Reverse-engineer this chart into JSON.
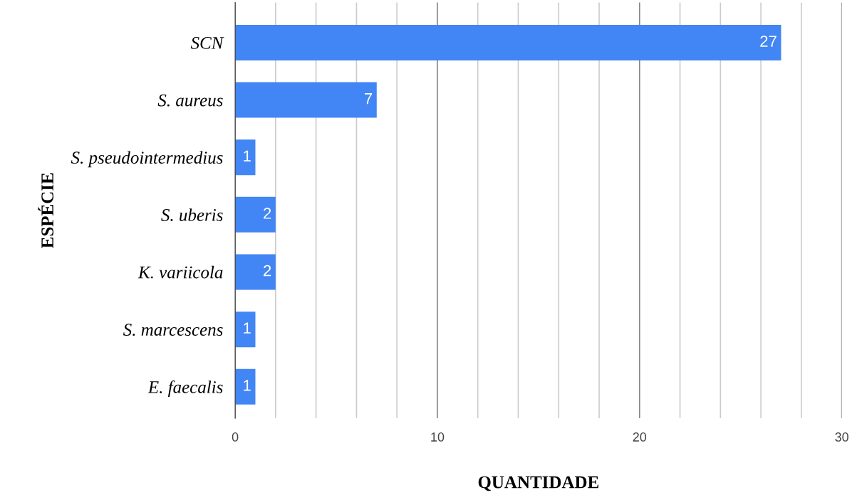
{
  "chart_data": {
    "type": "bar",
    "orientation": "horizontal",
    "categories": [
      "SCN",
      "S. aureus",
      "S. pseudointermedius",
      "S. uberis",
      "K. variicola",
      "S. marcescens",
      "E. faecalis"
    ],
    "values": [
      27,
      7,
      1,
      2,
      2,
      1,
      1
    ],
    "color": "#4285f4",
    "xlabel": "QUANTIDADE",
    "ylabel": "ESPÉCIE",
    "xlim": [
      0,
      30
    ],
    "xticks": [
      0,
      {
        "value": 2,
        "label": null
      },
      {
        "value": 4,
        "label": null
      },
      {
        "value": 6,
        "label": null
      },
      {
        "value": 8,
        "label": null
      },
      10,
      {
        "value": 12,
        "label": null
      },
      {
        "value": 14,
        "label": null
      },
      {
        "value": 16,
        "label": null
      },
      {
        "value": 18,
        "label": null
      },
      20,
      {
        "value": 22,
        "label": null
      },
      {
        "value": 24,
        "label": null
      },
      {
        "value": 26,
        "label": null
      },
      {
        "value": 28,
        "label": null
      },
      30
    ],
    "grid": "x",
    "data_labels": true,
    "legend": false
  }
}
